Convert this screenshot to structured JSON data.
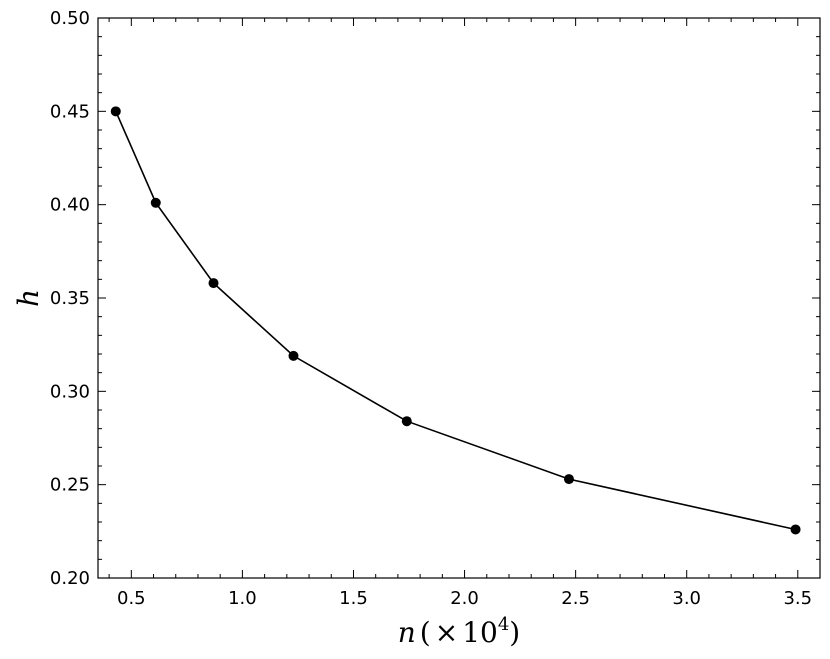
{
  "chart_data": {
    "type": "line",
    "xlabel": {
      "var": "n",
      "open": "(",
      "times": "×",
      "base": "10",
      "exp": "4",
      "close": ")"
    },
    "ylabel": "h",
    "xlim": [
      0.35,
      3.6
    ],
    "ylim": [
      0.2,
      0.5
    ],
    "xticks": [
      0.5,
      1.0,
      1.5,
      2.0,
      2.5,
      3.0,
      3.5
    ],
    "xtick_labels": [
      "0.5",
      "1.0",
      "1.5",
      "2.0",
      "2.5",
      "3.0",
      "3.5"
    ],
    "yticks": [
      0.2,
      0.25,
      0.3,
      0.35,
      0.4,
      0.45,
      0.5
    ],
    "ytick_labels": [
      "0.20",
      "0.25",
      "0.30",
      "0.35",
      "0.40",
      "0.45",
      "0.50"
    ],
    "grid": false,
    "series": [
      {
        "color": "#000000",
        "marker": "circle",
        "x": [
          0.43,
          0.61,
          0.87,
          1.23,
          1.74,
          2.47,
          3.49
        ],
        "y": [
          0.45,
          0.401,
          0.358,
          0.319,
          0.284,
          0.253,
          0.226
        ]
      }
    ]
  }
}
